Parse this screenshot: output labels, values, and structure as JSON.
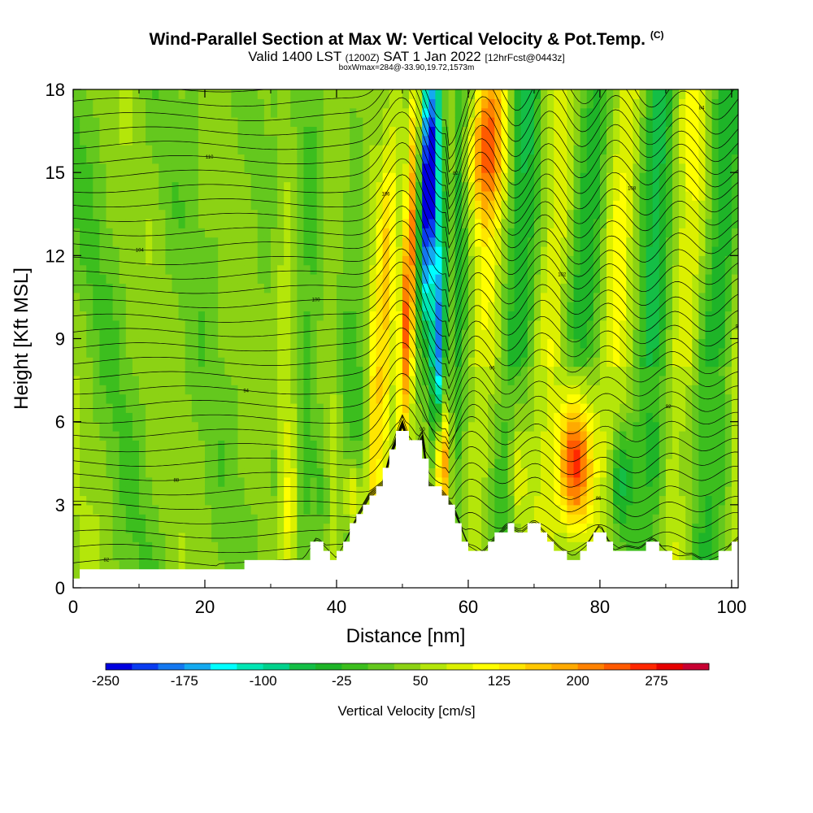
{
  "header": {
    "title_main": "Wind-Parallel Section at Max W: Vertical Velocity & Pot.Temp.",
    "title_mark": "(C)",
    "valid_prefix": "Valid 1400 LST",
    "valid_utc": "(1200Z)",
    "valid_date": "SAT 1 Jan 2022",
    "valid_fcst": "[12hrFcst@0443z]",
    "box_info": "boxWmax=284@-33.90,19.72,1573m"
  },
  "chart_data": {
    "type": "heatmap",
    "title": "Wind-Parallel Section at Max W: Vertical Velocity & Pot.Temp.",
    "xlabel": "Distance [nm]",
    "ylabel": "Height [Kft MSL]",
    "xlim": [
      0,
      101
    ],
    "ylim": [
      0,
      18
    ],
    "xticks": [
      0,
      20,
      40,
      60,
      80,
      100
    ],
    "yticks": [
      0,
      3,
      6,
      9,
      12,
      15,
      18
    ],
    "colorbar": {
      "title": "Vertical Velocity [cm/s]",
      "levels": [
        -250,
        -225,
        -200,
        -175,
        -150,
        -125,
        -100,
        -75,
        -50,
        -25,
        0,
        25,
        50,
        75,
        100,
        125,
        150,
        175,
        200,
        225,
        250,
        275,
        300
      ],
      "tick_labels": [
        "-250",
        "-175",
        "-100",
        "-25",
        "50",
        "125",
        "200",
        "275"
      ],
      "colors": [
        "#0000e0",
        "#0a3cf0",
        "#1478f0",
        "#14aaf0",
        "#00ffff",
        "#00e6b4",
        "#00d28c",
        "#14be46",
        "#1eb428",
        "#3cbe1e",
        "#64c81e",
        "#8cd214",
        "#b4e60a",
        "#dcf000",
        "#ffff00",
        "#ffe600",
        "#ffc800",
        "#ffaa00",
        "#ff8200",
        "#ff5a00",
        "#ff2800",
        "#e60000",
        "#c80032"
      ]
    },
    "w_features_cms": [
      {
        "name": "updraft",
        "x": 47.3,
        "z": 9.0,
        "w": 130
      },
      {
        "name": "updraft",
        "x": 51.0,
        "z": 12.0,
        "w": 240
      },
      {
        "name": "downdraft",
        "x": 54.0,
        "z": 15.0,
        "w": -250
      },
      {
        "name": "updraft",
        "x": 56.0,
        "z": 4.0,
        "w": 210
      },
      {
        "name": "updraft",
        "x": 62.0,
        "z": 16.0,
        "w": 200
      },
      {
        "name": "updraft",
        "x": 76.5,
        "z": 4.5,
        "w": 284
      },
      {
        "name": "downdraft",
        "x": 83.0,
        "z": 4.0,
        "w": -110
      },
      {
        "name": "updraft",
        "x": 42.5,
        "z": 3.2,
        "w": 140
      }
    ],
    "terrain_kft": {
      "x": [
        0,
        9,
        18,
        21,
        22,
        35,
        37,
        40,
        43,
        45,
        47,
        48,
        49,
        50,
        51,
        52,
        53,
        54,
        55,
        56,
        57,
        58,
        60,
        62,
        64,
        66,
        68,
        70,
        72,
        74,
        76,
        78,
        80,
        82,
        84,
        86,
        88,
        90,
        92,
        94,
        96,
        98,
        101
      ],
      "z": [
        0.3,
        0.6,
        0.6,
        0.3,
        0.6,
        0.8,
        1.6,
        0.8,
        2.3,
        3.2,
        3.6,
        4.6,
        5.3,
        6.0,
        5.2,
        4.9,
        5.5,
        3.6,
        3.4,
        3.3,
        3.0,
        2.6,
        1.3,
        1.0,
        1.6,
        2.1,
        1.8,
        2.2,
        1.7,
        1.2,
        0.9,
        1.3,
        2.1,
        1.1,
        1.3,
        1.2,
        1.6,
        1.1,
        0.9,
        1.0,
        0.7,
        0.9,
        1.6
      ]
    },
    "theta_contours": {
      "count": 34,
      "label_values": [
        "82",
        "84",
        "86",
        "88",
        "90",
        "92",
        "94",
        "96",
        "98",
        "100",
        "102",
        "104",
        "106",
        "108",
        "110"
      ]
    }
  }
}
